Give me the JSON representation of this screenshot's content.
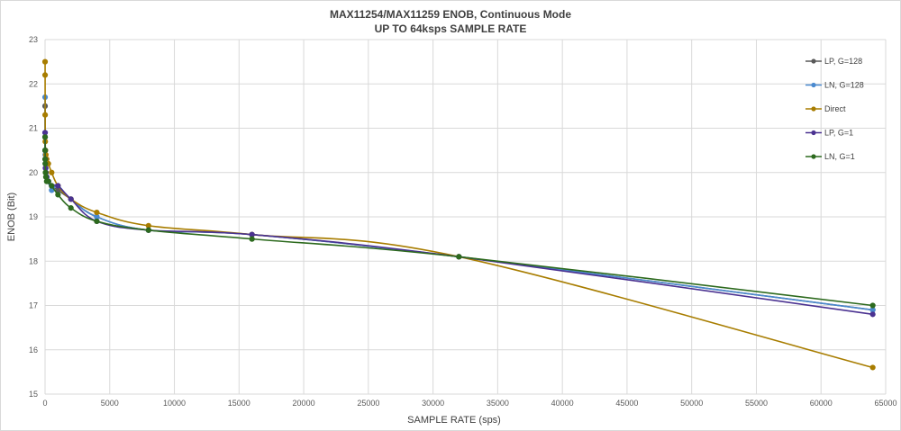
{
  "chart_data": {
    "type": "line",
    "title": "MAX11254/MAX11259 ENOB, Continuous Mode",
    "subtitle": "UP TO 64ksps SAMPLE RATE",
    "xlabel": "SAMPLE RATE (sps)",
    "ylabel": "ENOB (Bit)",
    "xlim": [
      0,
      65000
    ],
    "ylim": [
      15,
      23
    ],
    "xticks": [
      0,
      5000,
      10000,
      15000,
      20000,
      25000,
      30000,
      35000,
      40000,
      45000,
      50000,
      55000,
      60000,
      65000
    ],
    "yticks": [
      15,
      16,
      17,
      18,
      19,
      20,
      21,
      22,
      23
    ],
    "grid": true,
    "legend_position": "right",
    "series": [
      {
        "name": "LP, G=128",
        "color": "#595959",
        "x": [
          2,
          4,
          8,
          16,
          32,
          64,
          128,
          256,
          512,
          1000,
          2000,
          4000,
          8000,
          16000,
          32000,
          64000
        ],
        "y": [
          21.5,
          20.8,
          20.5,
          20.3,
          20.1,
          20.0,
          19.9,
          19.8,
          19.7,
          19.6,
          19.4,
          19.0,
          18.7,
          18.6,
          18.1,
          16.9
        ]
      },
      {
        "name": "LN, G=128",
        "color": "#4a8ad0",
        "x": [
          2,
          4,
          8,
          16,
          32,
          64,
          128,
          256,
          512,
          1000,
          2000,
          4000,
          8000,
          16000,
          32000,
          64000
        ],
        "y": [
          21.7,
          20.9,
          20.5,
          20.4,
          20.2,
          20.1,
          19.9,
          19.8,
          19.6,
          19.7,
          19.4,
          19.0,
          18.7,
          18.6,
          18.1,
          16.9
        ]
      },
      {
        "name": "Direct",
        "color": "#a87d00",
        "x": [
          2,
          4,
          8,
          16,
          32,
          64,
          128,
          256,
          512,
          1000,
          2000,
          4000,
          8000,
          16000,
          32000,
          64000
        ],
        "y": [
          22.5,
          22.2,
          21.3,
          20.7,
          20.5,
          20.4,
          20.3,
          20.2,
          20.0,
          19.7,
          19.4,
          19.1,
          18.8,
          18.6,
          18.1,
          15.6
        ]
      },
      {
        "name": "LP, G=1",
        "color": "#4b3291",
        "x": [
          2,
          4,
          8,
          16,
          32,
          64,
          128,
          256,
          512,
          1000,
          2000,
          4000,
          8000,
          16000,
          32000,
          64000
        ],
        "y": [
          20.9,
          20.8,
          20.5,
          20.3,
          20.1,
          20.0,
          19.9,
          19.8,
          19.7,
          19.7,
          19.4,
          18.9,
          18.7,
          18.6,
          18.1,
          16.8
        ]
      },
      {
        "name": "LN, G=1",
        "color": "#2d6a1e",
        "x": [
          2,
          4,
          8,
          16,
          32,
          64,
          128,
          256,
          512,
          1000,
          2000,
          4000,
          8000,
          16000,
          32000,
          64000
        ],
        "y": [
          20.8,
          20.5,
          20.3,
          20.2,
          20.0,
          19.9,
          19.8,
          19.8,
          19.7,
          19.5,
          19.2,
          18.9,
          18.7,
          18.5,
          18.1,
          17.0
        ]
      }
    ]
  }
}
